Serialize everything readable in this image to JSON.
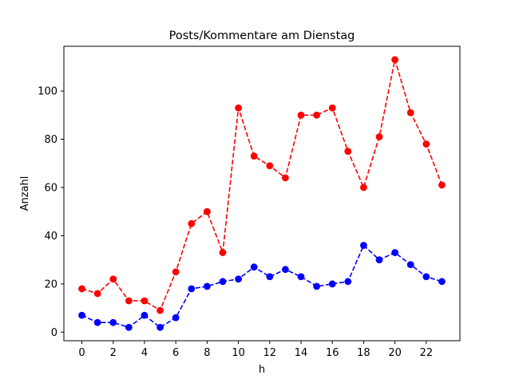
{
  "chart_data": {
    "type": "line",
    "title": "Posts/Kommentare am Dienstag",
    "xlabel": "h",
    "ylabel": "Anzahl",
    "x": [
      0,
      1,
      2,
      3,
      4,
      5,
      6,
      7,
      8,
      9,
      10,
      11,
      12,
      13,
      14,
      15,
      16,
      17,
      18,
      19,
      20,
      21,
      22,
      23
    ],
    "xticks": [
      0,
      2,
      4,
      6,
      8,
      10,
      12,
      14,
      16,
      18,
      20,
      22
    ],
    "yticks": [
      0,
      20,
      40,
      60,
      80,
      100
    ],
    "xlim": [
      -1.15,
      24.15
    ],
    "ylim": [
      -3.55,
      118.55
    ],
    "grid": false,
    "series": [
      {
        "color": "#ff0000",
        "line_style": "dashed",
        "marker": "circle",
        "values": [
          18,
          16,
          22,
          13,
          13,
          9,
          25,
          45,
          50,
          33,
          93,
          73,
          69,
          64,
          90,
          90,
          93,
          75,
          60,
          81,
          113,
          91,
          78,
          61
        ]
      },
      {
        "color": "#0000ff",
        "line_style": "dashed",
        "marker": "circle",
        "values": [
          7,
          4,
          4,
          2,
          7,
          2,
          6,
          18,
          19,
          21,
          22,
          27,
          23,
          26,
          23,
          19,
          20,
          21,
          36,
          30,
          33,
          28,
          23,
          21
        ]
      }
    ]
  }
}
